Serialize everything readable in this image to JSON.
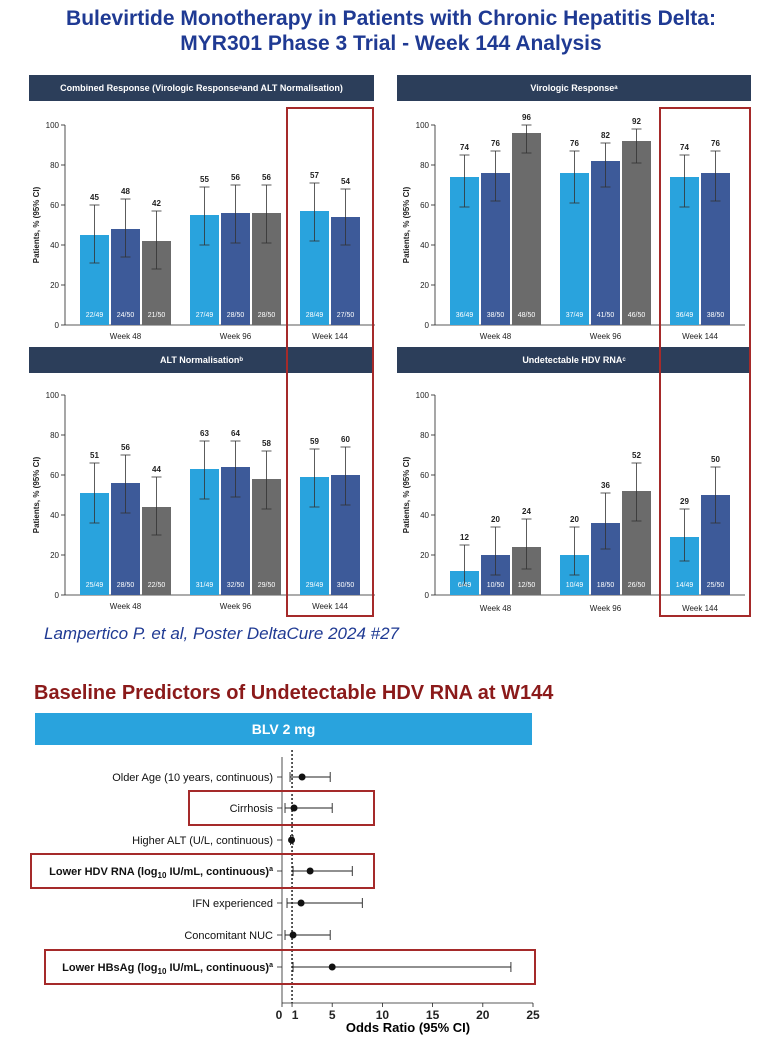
{
  "page": {
    "title_line1": "Bulevirtide Monotherapy in Patients with Chronic Hepatitis Delta:",
    "title_line2": "MYR301 Phase 3 Trial - Week 144 Analysis",
    "citation": "Lampertico P. et al, Poster DeltaCure 2024 #27",
    "forest_title": "Baseline Predictors of Undetectable HDV RNA at W144",
    "forest_header": "BLV 2 mg",
    "colors": {
      "series1": "#29a3dd",
      "series2": "#3d5a99",
      "series3": "#6b6b6b",
      "highlight": "#a52a2a",
      "header_bg": "#2c3e5a"
    }
  },
  "chart_data": [
    {
      "type": "bar",
      "title": "Combined Response (Virologic Response",
      "title_sup": "a",
      "title_tail": " and ALT Normalisation)",
      "ylabel": "Patients, % (95% CI)",
      "ylim": [
        0,
        100
      ],
      "yticks": [
        0,
        20,
        40,
        60,
        80,
        100
      ],
      "groups": [
        {
          "label": "Week 48",
          "bars": [
            {
              "value": 45,
              "ci": [
                31,
                60
              ],
              "n": "22/49",
              "series": 0
            },
            {
              "value": 48,
              "ci": [
                34,
                63
              ],
              "n": "24/50",
              "series": 1
            },
            {
              "value": 42,
              "ci": [
                28,
                57
              ],
              "n": "21/50",
              "series": 2
            }
          ]
        },
        {
          "label": "Week 96",
          "bars": [
            {
              "value": 55,
              "ci": [
                40,
                69
              ],
              "n": "27/49",
              "series": 0
            },
            {
              "value": 56,
              "ci": [
                41,
                70
              ],
              "n": "28/50",
              "series": 1
            },
            {
              "value": 56,
              "ci": [
                41,
                70
              ],
              "n": "28/50",
              "series": 2
            }
          ]
        },
        {
          "label": "Week 144",
          "bars": [
            {
              "value": 57,
              "ci": [
                42,
                71
              ],
              "n": "28/49",
              "series": 0
            },
            {
              "value": 54,
              "ci": [
                40,
                68
              ],
              "n": "27/50",
              "series": 1
            }
          ]
        }
      ]
    },
    {
      "type": "bar",
      "title": "Virologic Response",
      "title_sup": "a",
      "title_tail": "",
      "ylabel": "Patients, % (95% CI)",
      "ylim": [
        0,
        100
      ],
      "yticks": [
        0,
        20,
        40,
        60,
        80,
        100
      ],
      "groups": [
        {
          "label": "Week 48",
          "bars": [
            {
              "value": 74,
              "ci": [
                59,
                85
              ],
              "n": "36/49",
              "series": 0
            },
            {
              "value": 76,
              "ci": [
                62,
                87
              ],
              "n": "38/50",
              "series": 1
            },
            {
              "value": 96,
              "ci": [
                86,
                100
              ],
              "n": "48/50",
              "series": 2
            }
          ]
        },
        {
          "label": "Week 96",
          "bars": [
            {
              "value": 76,
              "ci": [
                61,
                87
              ],
              "n": "37/49",
              "series": 0
            },
            {
              "value": 82,
              "ci": [
                69,
                91
              ],
              "n": "41/50",
              "series": 1
            },
            {
              "value": 92,
              "ci": [
                81,
                98
              ],
              "n": "46/50",
              "series": 2
            }
          ]
        },
        {
          "label": "Week 144",
          "bars": [
            {
              "value": 74,
              "ci": [
                59,
                85
              ],
              "n": "36/49",
              "series": 0
            },
            {
              "value": 76,
              "ci": [
                62,
                87
              ],
              "n": "38/50",
              "series": 1
            }
          ]
        }
      ]
    },
    {
      "type": "bar",
      "title": "ALT Normalisation",
      "title_sup": "b",
      "title_tail": "",
      "ylabel": "Patients, % (95% CI)",
      "ylim": [
        0,
        100
      ],
      "yticks": [
        0,
        20,
        40,
        60,
        80,
        100
      ],
      "groups": [
        {
          "label": "Week 48",
          "bars": [
            {
              "value": 51,
              "ci": [
                36,
                66
              ],
              "n": "25/49",
              "series": 0
            },
            {
              "value": 56,
              "ci": [
                41,
                70
              ],
              "n": "28/50",
              "series": 1
            },
            {
              "value": 44,
              "ci": [
                30,
                59
              ],
              "n": "22/50",
              "series": 2
            }
          ]
        },
        {
          "label": "Week 96",
          "bars": [
            {
              "value": 63,
              "ci": [
                48,
                77
              ],
              "n": "31/49",
              "series": 0
            },
            {
              "value": 64,
              "ci": [
                49,
                77
              ],
              "n": "32/50",
              "series": 1
            },
            {
              "value": 58,
              "ci": [
                43,
                72
              ],
              "n": "29/50",
              "series": 2
            }
          ]
        },
        {
          "label": "Week 144",
          "bars": [
            {
              "value": 59,
              "ci": [
                44,
                73
              ],
              "n": "29/49",
              "series": 0
            },
            {
              "value": 60,
              "ci": [
                45,
                74
              ],
              "n": "30/50",
              "series": 1
            }
          ]
        }
      ]
    },
    {
      "type": "bar",
      "title": "Undetectable HDV RNA",
      "title_sup": "c",
      "title_tail": "",
      "ylabel": "Patients, % (95% CI)",
      "ylim": [
        0,
        100
      ],
      "yticks": [
        0,
        20,
        40,
        60,
        80,
        100
      ],
      "groups": [
        {
          "label": "Week 48",
          "bars": [
            {
              "value": 12,
              "ci": [
                5,
                25
              ],
              "n": "6/49",
              "series": 0
            },
            {
              "value": 20,
              "ci": [
                10,
                34
              ],
              "n": "10/50",
              "series": 1
            },
            {
              "value": 24,
              "ci": [
                13,
                38
              ],
              "n": "12/50",
              "series": 2
            }
          ]
        },
        {
          "label": "Week 96",
          "bars": [
            {
              "value": 20,
              "ci": [
                10,
                34
              ],
              "n": "10/49",
              "series": 0
            },
            {
              "value": 36,
              "ci": [
                23,
                51
              ],
              "n": "18/50",
              "series": 1
            },
            {
              "value": 52,
              "ci": [
                37,
                66
              ],
              "n": "26/50",
              "series": 2
            }
          ]
        },
        {
          "label": "Week 144",
          "bars": [
            {
              "value": 29,
              "ci": [
                17,
                43
              ],
              "n": "14/49",
              "series": 0
            },
            {
              "value": 50,
              "ci": [
                36,
                64
              ],
              "n": "25/50",
              "series": 1
            }
          ]
        }
      ]
    },
    {
      "type": "scatter",
      "subtype": "forest",
      "xlabel": "Odds Ratio (95% CI)",
      "xlim": [
        0,
        25
      ],
      "xticks": [
        0,
        1,
        5,
        10,
        15,
        20,
        25
      ],
      "reference_line": 1,
      "rows": [
        {
          "label": "Older Age (10 years, continuous)",
          "sub": "",
          "tail": "",
          "sup": "",
          "bold": false,
          "highlight": false,
          "or": 2.0,
          "ci": [
            0.8,
            4.8
          ]
        },
        {
          "label": "Cirrhosis",
          "sub": "",
          "tail": "",
          "sup": "",
          "bold": false,
          "highlight": true,
          "or": 1.2,
          "ci": [
            0.3,
            5.0
          ]
        },
        {
          "label": "Higher ALT (U/L, continuous)",
          "sub": "",
          "tail": "",
          "sup": "",
          "bold": false,
          "highlight": false,
          "or": 0.95,
          "ci": [
            0.85,
            1.1
          ]
        },
        {
          "label": "Lower HDV RNA (log",
          "sub": "10",
          "tail": " IU/mL, continuous)",
          "sup": "a",
          "bold": true,
          "highlight": true,
          "or": 2.8,
          "ci": [
            1.1,
            7.0
          ]
        },
        {
          "label": "IFN experienced",
          "sub": "",
          "tail": "",
          "sup": "",
          "bold": false,
          "highlight": false,
          "or": 1.9,
          "ci": [
            0.5,
            8.0
          ]
        },
        {
          "label": "Concomitant NUC",
          "sub": "",
          "tail": "",
          "sup": "",
          "bold": false,
          "highlight": false,
          "or": 1.1,
          "ci": [
            0.3,
            4.8
          ]
        },
        {
          "label": "Lower HBsAg (log",
          "sub": "10",
          "tail": " IU/mL, continuous)",
          "sup": "a",
          "bold": true,
          "highlight": true,
          "or": 5.0,
          "ci": [
            1.1,
            22.8
          ]
        }
      ]
    }
  ]
}
